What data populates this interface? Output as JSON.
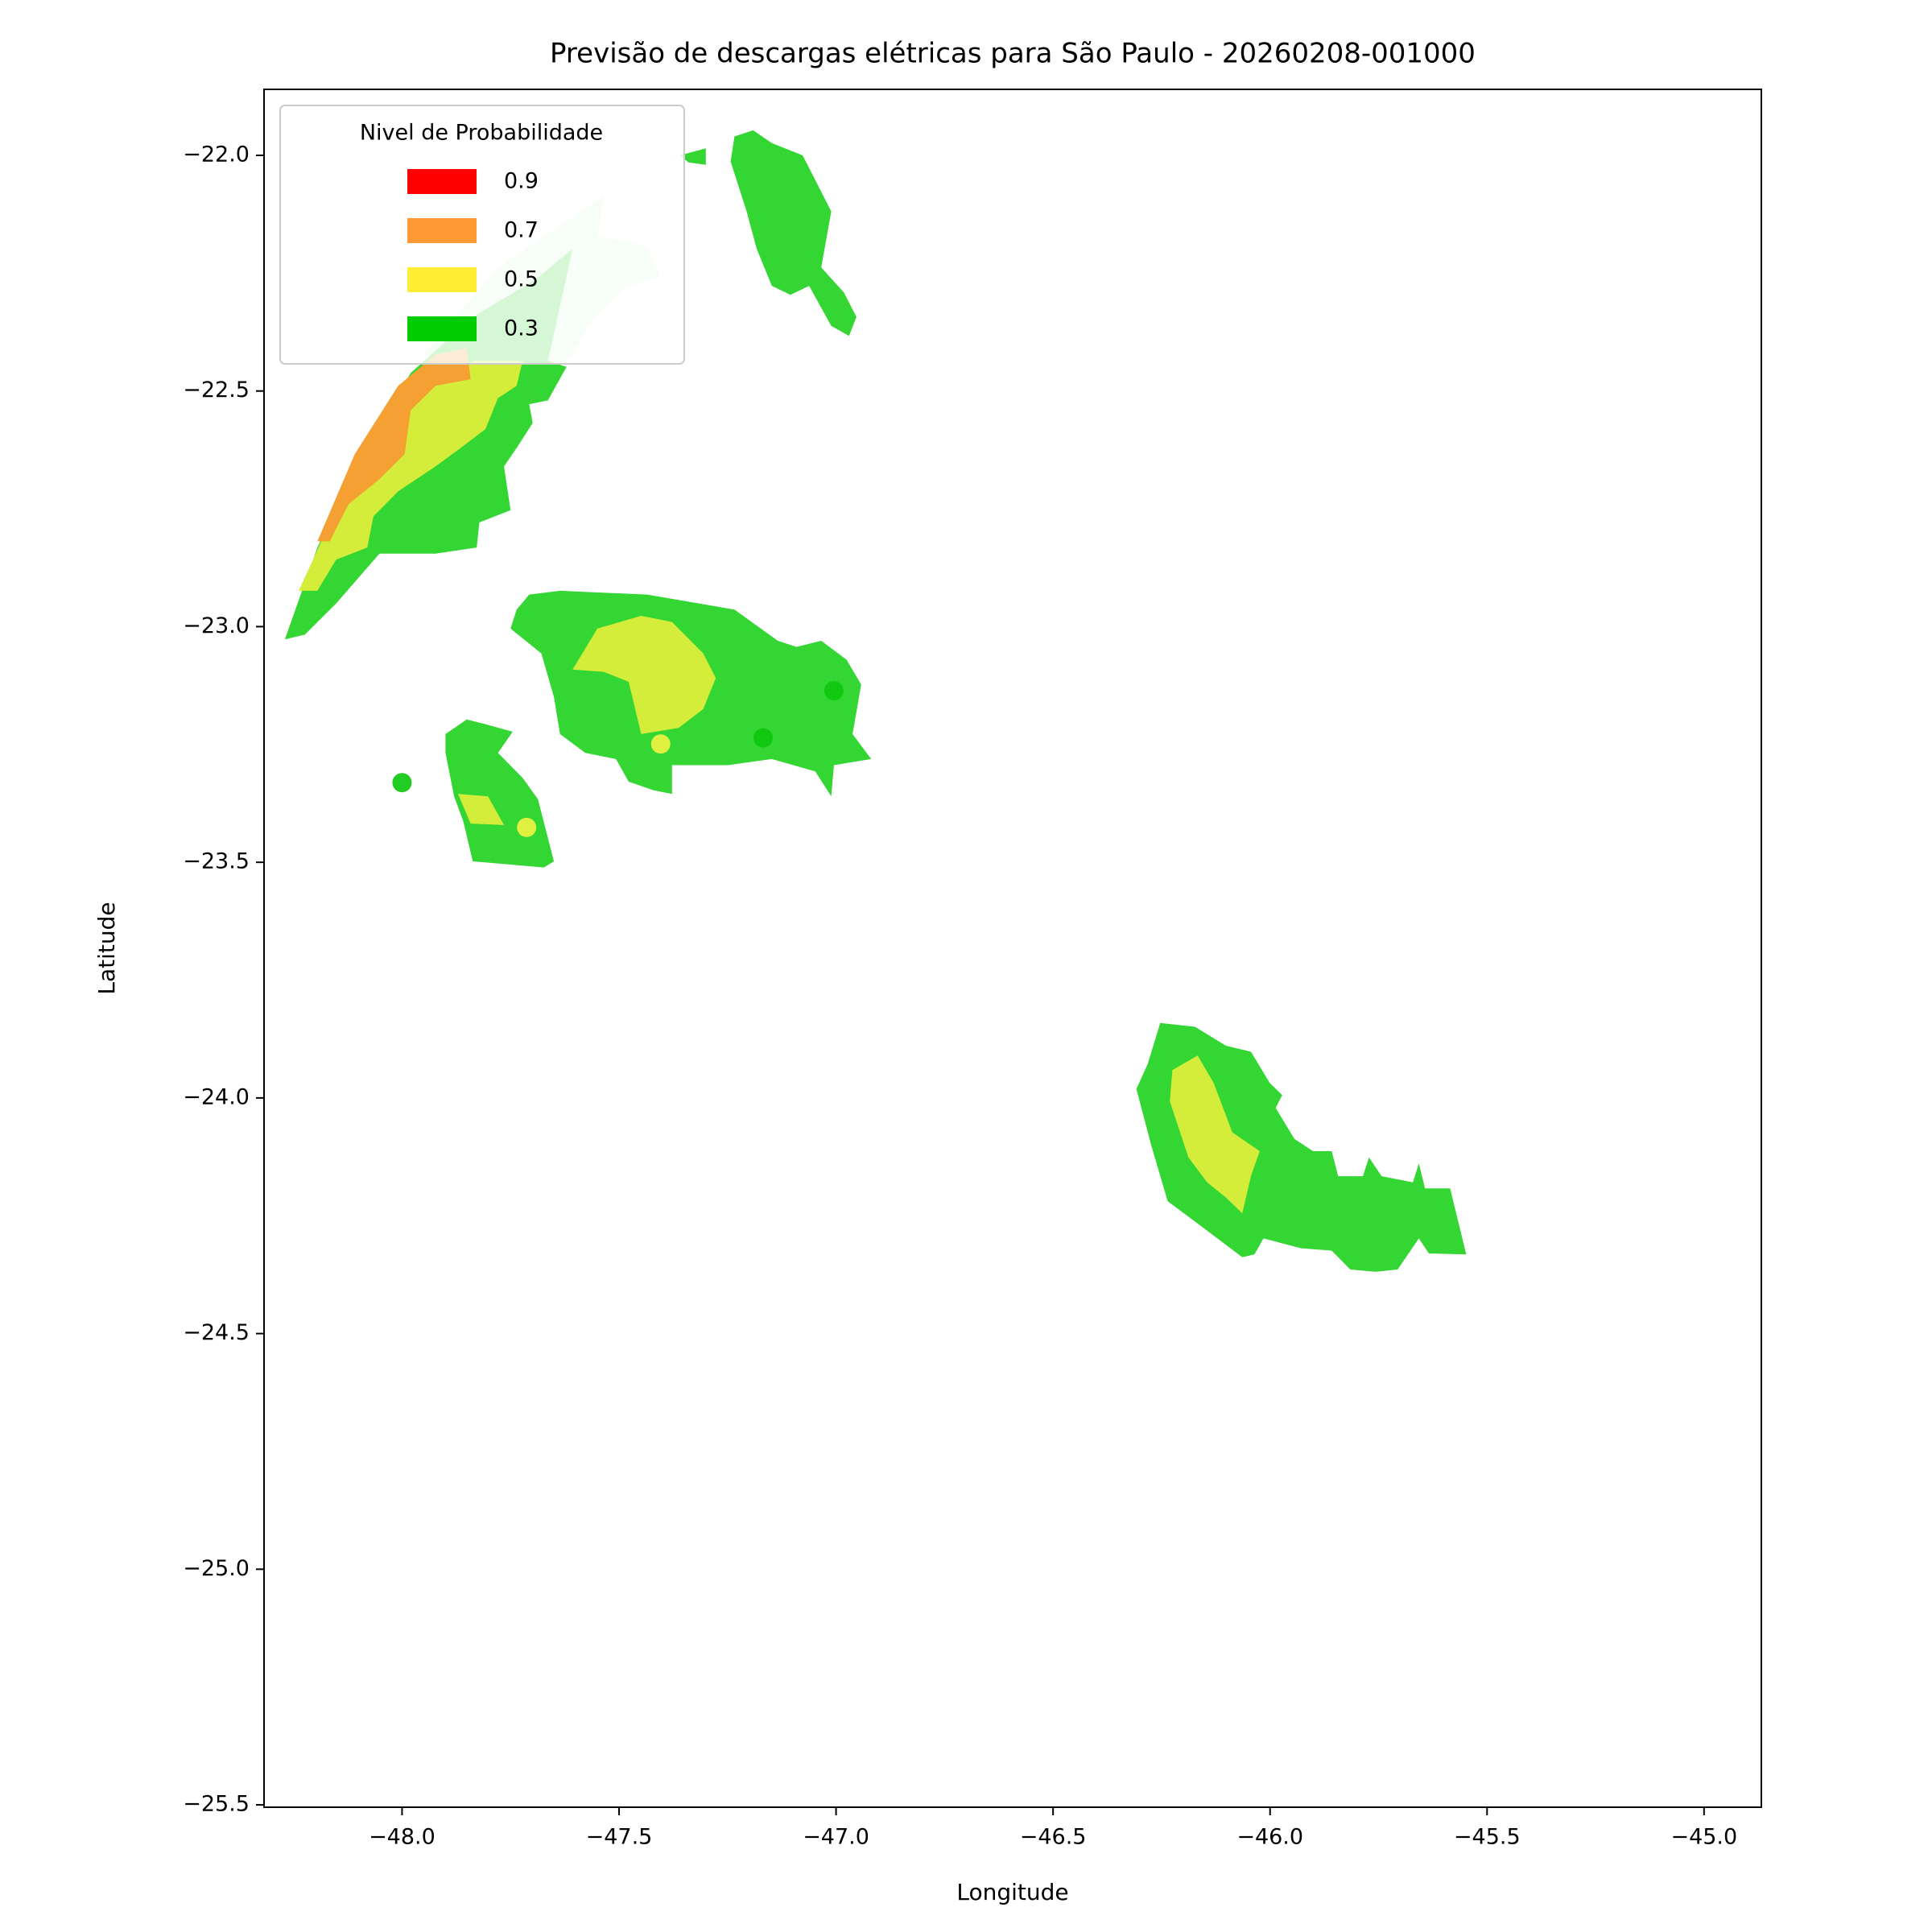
{
  "chart_data": {
    "type": "contour",
    "title": "Previsão de descargas elétricas para São Paulo - 20260208-001000",
    "xlabel": "Longitude",
    "ylabel": "Latitude",
    "xlim": [
      -48.318,
      -44.868
    ],
    "ylim": [
      -25.505,
      -21.86
    ],
    "xticks": [
      {
        "value": -48,
        "label": "−48.0"
      },
      {
        "value": -47.5,
        "label": "−47.5"
      },
      {
        "value": -47,
        "label": "−47.0"
      },
      {
        "value": -46.5,
        "label": "−46.5"
      },
      {
        "value": -46,
        "label": "−46.0"
      },
      {
        "value": -45.5,
        "label": "−45.5"
      },
      {
        "value": -45,
        "label": "−45.0"
      }
    ],
    "yticks": [
      {
        "value": -22,
        "label": "−22.0"
      },
      {
        "value": -22.5,
        "label": "−22.5"
      },
      {
        "value": -23,
        "label": "−23.0"
      },
      {
        "value": -23.5,
        "label": "−23.5"
      },
      {
        "value": -24,
        "label": "−24.0"
      },
      {
        "value": -24.5,
        "label": "−24.5"
      },
      {
        "value": -25,
        "label": "−25.0"
      },
      {
        "value": -25.5,
        "label": "−25.5"
      }
    ],
    "legend": {
      "title": "Nivel de Probabilidade",
      "location": "upper left",
      "entries": [
        {
          "name": 0.9,
          "color": "#ff0000"
        },
        {
          "name": 0.7,
          "color": "#ff9933"
        },
        {
          "name": 0.5,
          "color": "#ffee33"
        },
        {
          "name": 0.3,
          "color": "#00cc00"
        }
      ]
    },
    "regions": [
      {
        "color": "#d6f5d6",
        "lon": [
          -47.951,
          -47.779,
          -47.535,
          -47.55,
          -47.435,
          -47.406,
          -47.492,
          -47.564,
          -47.621
        ],
        "lat": [
          -22.423,
          -22.238,
          -22.087,
          -22.172,
          -22.193,
          -22.256,
          -22.283,
          -22.351,
          -22.441
        ]
      },
      {
        "color": "#33d633",
        "lon": [
          -48.27,
          -48.195,
          -48.095,
          -47.98,
          -47.837,
          -47.693,
          -47.607,
          -47.664,
          -47.621,
          -47.664,
          -47.707,
          -47.699,
          -47.736,
          -47.765,
          -47.75,
          -47.822,
          -47.828,
          -47.923,
          -48.052,
          -48.152,
          -48.224
        ],
        "lat": [
          -23.027,
          -22.832,
          -22.634,
          -22.462,
          -22.343,
          -22.264,
          -22.198,
          -22.436,
          -22.449,
          -22.52,
          -22.528,
          -22.568,
          -22.621,
          -22.66,
          -22.753,
          -22.779,
          -22.832,
          -22.845,
          -22.845,
          -22.951,
          -23.017
        ]
      },
      {
        "color": "#d4ed3a",
        "lon": [
          -48.238,
          -48.166,
          -48.037,
          -47.937,
          -47.837,
          -47.722,
          -47.736,
          -47.779,
          -47.808,
          -47.865,
          -47.923,
          -48.009,
          -48.066,
          -48.08,
          -48.152,
          -48.195
        ],
        "lat": [
          -22.924,
          -22.779,
          -22.581,
          -22.489,
          -22.436,
          -22.436,
          -22.489,
          -22.515,
          -22.581,
          -22.621,
          -22.66,
          -22.713,
          -22.766,
          -22.832,
          -22.858,
          -22.924
        ]
      },
      {
        "color": "#f5a033",
        "lon": [
          -48.195,
          -48.109,
          -48.009,
          -47.923,
          -47.851,
          -47.842,
          -47.923,
          -47.98,
          -47.994,
          -48.052,
          -48.123,
          -48.152,
          -48.166
        ],
        "lat": [
          -22.819,
          -22.634,
          -22.489,
          -22.423,
          -22.409,
          -22.475,
          -22.489,
          -22.541,
          -22.634,
          -22.687,
          -22.74,
          -22.792,
          -22.819
        ]
      },
      {
        "color": "#33d633",
        "lon": [
          -47.234,
          -47.191,
          -47.148,
          -47.077,
          -47.011,
          -47.034,
          -46.982,
          -46.953,
          -46.97,
          -47.011,
          -47.062,
          -47.105,
          -47.148,
          -47.183,
          -47.206,
          -47.243
        ],
        "lat": [
          -21.96,
          -21.947,
          -21.974,
          -22.0,
          -22.119,
          -22.238,
          -22.291,
          -22.343,
          -22.383,
          -22.362,
          -22.277,
          -22.296,
          -22.277,
          -22.198,
          -22.119,
          -22.013
        ]
      },
      {
        "color": "#33d633",
        "lon": [
          -47.36,
          -47.3,
          -47.3,
          -47.34
        ],
        "lat": [
          -22.0,
          -21.985,
          -22.02,
          -22.015
        ]
      },
      {
        "color": "#33d633",
        "lon": [
          -47.736,
          -47.707,
          -47.636,
          -47.435,
          -47.234,
          -47.134,
          -47.091,
          -47.034,
          -46.976,
          -46.942,
          -46.962,
          -46.919,
          -47.005,
          -47.011,
          -47.048,
          -47.148,
          -47.249,
          -47.378,
          -47.378,
          -47.421,
          -47.478,
          -47.507,
          -47.578,
          -47.636,
          -47.65,
          -47.679,
          -47.75
        ],
        "lat": [
          -22.964,
          -22.932,
          -22.924,
          -22.932,
          -22.964,
          -23.03,
          -23.043,
          -23.03,
          -23.07,
          -23.123,
          -23.228,
          -23.281,
          -23.294,
          -23.36,
          -23.307,
          -23.281,
          -23.294,
          -23.294,
          -23.355,
          -23.347,
          -23.329,
          -23.281,
          -23.268,
          -23.228,
          -23.149,
          -23.057,
          -23.004
        ]
      },
      {
        "color": "#d4ed3a",
        "lon": [
          -47.607,
          -47.55,
          -47.449,
          -47.378,
          -47.306,
          -47.277,
          -47.306,
          -47.363,
          -47.449,
          -47.478,
          -47.535
        ],
        "lat": [
          -23.091,
          -23.004,
          -22.977,
          -22.99,
          -23.057,
          -23.109,
          -23.175,
          -23.215,
          -23.228,
          -23.117,
          -23.096
        ]
      },
      {
        "color": "#33d633",
        "lon": [
          -47.9,
          -47.851,
          -47.808,
          -47.745,
          -47.779,
          -47.722,
          -47.687,
          -47.65,
          -47.673,
          -47.837,
          -47.859,
          -47.88,
          -47.9
        ],
        "lat": [
          -23.228,
          -23.197,
          -23.207,
          -23.223,
          -23.268,
          -23.321,
          -23.366,
          -23.498,
          -23.511,
          -23.498,
          -23.413,
          -23.36,
          -23.268
        ]
      },
      {
        "color": "#d4ed3a",
        "lon": [
          -47.871,
          -47.802,
          -47.765,
          -47.842
        ],
        "lat": [
          -23.355,
          -23.36,
          -23.421,
          -23.418
        ]
      },
      {
        "color": "#33d633",
        "lon": [
          -46.253,
          -46.173,
          -46.102,
          -46.044,
          -46.001,
          -45.972,
          -45.987,
          -45.944,
          -45.901,
          -45.858,
          -45.843,
          -45.786,
          -45.772,
          -45.743,
          -45.671,
          -45.657,
          -45.643,
          -45.585,
          -45.548,
          -45.634,
          -45.657,
          -45.706,
          -45.757,
          -45.815,
          -45.858,
          -45.929,
          -46.015,
          -46.036,
          -46.064,
          -46.159,
          -46.236,
          -46.274,
          -46.308,
          -46.282
        ],
        "lat": [
          -23.841,
          -23.849,
          -23.889,
          -23.902,
          -23.968,
          -23.994,
          -24.021,
          -24.087,
          -24.113,
          -24.113,
          -24.166,
          -24.166,
          -24.126,
          -24.166,
          -24.179,
          -24.139,
          -24.192,
          -24.192,
          -24.332,
          -24.33,
          -24.298,
          -24.364,
          -24.369,
          -24.364,
          -24.324,
          -24.319,
          -24.298,
          -24.332,
          -24.338,
          -24.272,
          -24.219,
          -24.1,
          -23.981,
          -23.928
        ]
      },
      {
        "color": "#d4ed3a",
        "lon": [
          -46.167,
          -46.13,
          -46.087,
          -46.024,
          -46.044,
          -46.064,
          -46.102,
          -46.145,
          -46.188,
          -46.231,
          -46.225
        ],
        "lat": [
          -23.91,
          -23.968,
          -24.073,
          -24.113,
          -24.166,
          -24.245,
          -24.211,
          -24.179,
          -24.126,
          -24.007,
          -23.941
        ]
      }
    ],
    "points": {
      "lon": [
        -48.0,
        -47.713,
        -47.404,
        -47.168,
        -47.005
      ],
      "lat": [
        -23.331,
        -23.426,
        -23.249,
        -23.236,
        -23.136
      ],
      "colors": [
        "#22cc22",
        "#e0f040",
        "#e0f040",
        "#11c811",
        "#11c811"
      ]
    }
  }
}
